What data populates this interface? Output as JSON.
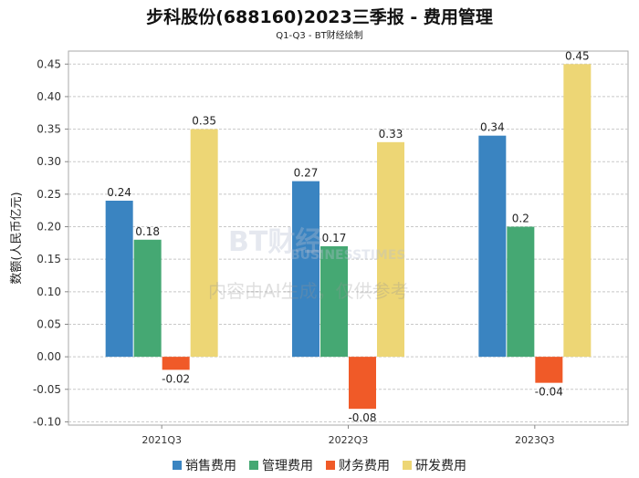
{
  "chart_data": {
    "type": "bar",
    "title": "步科股份(688160)2023三季报 - 费用管理",
    "subtitle": "Q1-Q3 - BT财经绘制",
    "ylabel": "数额(人民币亿元)",
    "xlabel": "",
    "categories": [
      "2021Q3",
      "2022Q3",
      "2023Q3"
    ],
    "series": [
      {
        "name": "销售费用",
        "color": "#3a84c1",
        "values": [
          0.24,
          0.27,
          0.34
        ]
      },
      {
        "name": "管理费用",
        "color": "#45a873",
        "values": [
          0.18,
          0.17,
          0.2
        ]
      },
      {
        "name": "财务费用",
        "color": "#f05a28",
        "values": [
          -0.02,
          -0.08,
          -0.04
        ]
      },
      {
        "name": "研发费用",
        "color": "#edd675",
        "values": [
          0.35,
          0.33,
          0.45
        ]
      }
    ],
    "yticks": [
      "0.45",
      "0.40",
      "0.35",
      "0.30",
      "0.25",
      "0.20",
      "0.15",
      "0.10",
      "0.05",
      "0.00",
      "-0.05",
      "-0.10"
    ],
    "ylim": [
      -0.105,
      0.47
    ],
    "grid": true,
    "legend": "bottom"
  },
  "watermark": {
    "brand": "BT财经",
    "sub": "BUSINESSTIMES",
    "note": "内容由AI生成，仅供参考"
  }
}
